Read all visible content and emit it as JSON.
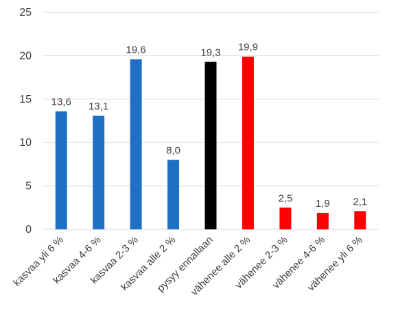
{
  "chart_data": {
    "type": "bar",
    "title": "",
    "xlabel": "",
    "ylabel": "",
    "ylim": [
      0,
      25
    ],
    "yticks": [
      0,
      5,
      10,
      15,
      20,
      25
    ],
    "grid": true,
    "legend": "none",
    "categories": [
      "kasvaa yli 6 %",
      "kasvaa 4-6 %",
      "kasvaa 2-3 %",
      "kasvaa alle 2 %",
      "pysyy ennallaan",
      "vähenee alle 2 %",
      "vähenee 2-3 %",
      "vähenee 4-6 %",
      "vähenee yli 6 %"
    ],
    "values": [
      13.6,
      13.1,
      19.6,
      8.0,
      19.3,
      19.9,
      2.5,
      1.9,
      2.1
    ],
    "value_labels": [
      "13,6",
      "13,1",
      "19,6",
      "8,0",
      "19,3",
      "19,9",
      "2,5",
      "1,9",
      "2,1"
    ],
    "bar_colors": [
      "#1f6fc5",
      "#1f6fc5",
      "#1f6fc5",
      "#1f6fc5",
      "#000000",
      "#ff0000",
      "#ff0000",
      "#ff0000",
      "#ff0000"
    ]
  }
}
